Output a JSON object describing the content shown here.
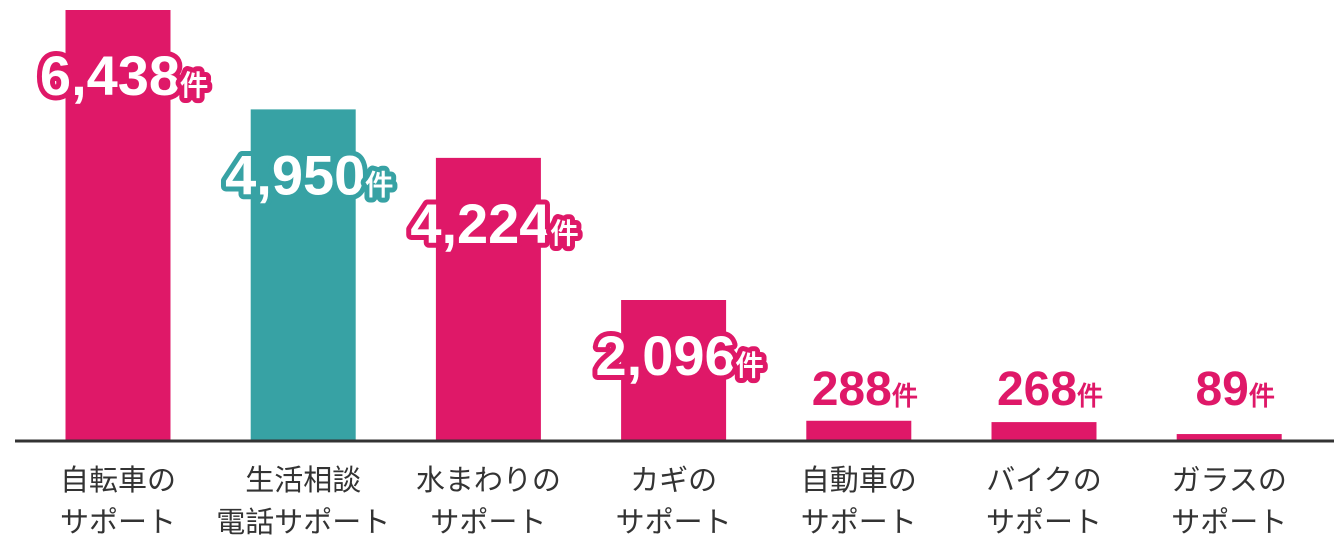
{
  "chart_data": {
    "type": "bar",
    "categories": [
      [
        "自転車の",
        "サポート"
      ],
      [
        "生活相談",
        "電話サポート"
      ],
      [
        "水まわりの",
        "サポート"
      ],
      [
        "カギの",
        "サポート"
      ],
      [
        "自動車の",
        "サポート"
      ],
      [
        "バイクの",
        "サポート"
      ],
      [
        "ガラスの",
        "サポート"
      ]
    ],
    "values": [
      6438,
      4950,
      4224,
      2096,
      288,
      268,
      89
    ],
    "value_labels": [
      "6,438",
      "4,950",
      "4,224",
      "2,096",
      "288",
      "268",
      "89"
    ],
    "unit": "件",
    "colors": [
      "#DF1868",
      "#37A2A4",
      "#DF1868",
      "#DF1868",
      "#DF1868",
      "#DF1868",
      "#DF1868"
    ],
    "axis_color": "#333333",
    "ylim": [
      0,
      6438
    ],
    "grid": false
  }
}
